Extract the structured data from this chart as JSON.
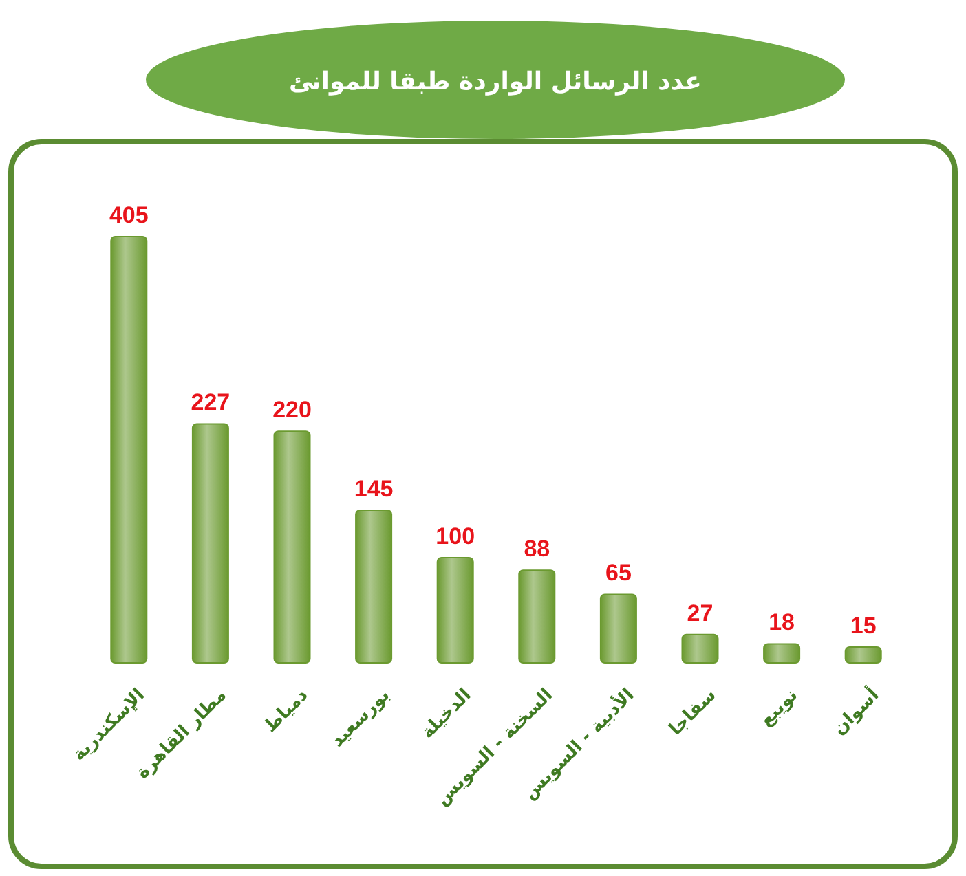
{
  "chart_data": {
    "type": "bar",
    "title": "عدد الرسائل الواردة طبقا للموانئ",
    "categories": [
      "الإسكندرية",
      "مطار القاهرة",
      "دمياط",
      "بورسعيد",
      "الدخيلة",
      "السخنة - السويس",
      "الأدبية - السويس",
      "سفاجا",
      "نويبع",
      "أسوان"
    ],
    "values": [
      405,
      227,
      220,
      145,
      100,
      88,
      65,
      27,
      18,
      15
    ],
    "color": "#6b9a30",
    "data_labels": true
  }
}
